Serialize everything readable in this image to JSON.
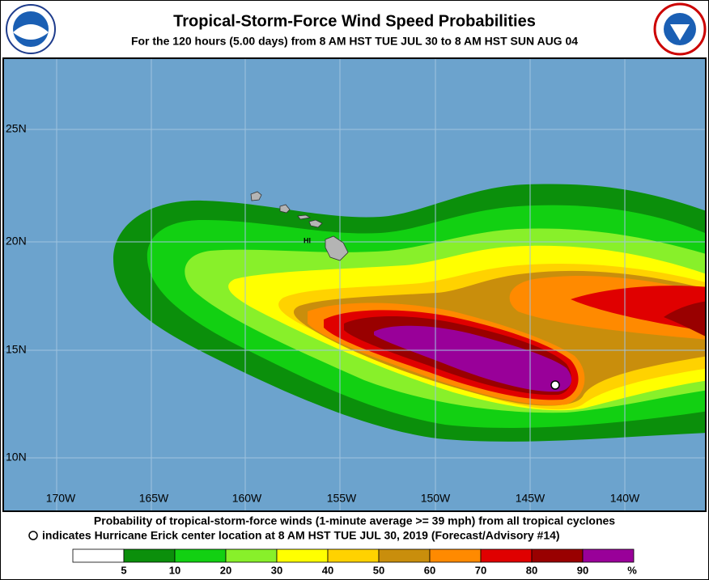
{
  "header": {
    "title": "Tropical-Storm-Force Wind Speed Probabilities",
    "subtitle": "For the 120 hours (5.00 days) from 8 AM HST TUE JUL 30 to 8 AM HST SUN AUG 04"
  },
  "map": {
    "latitude_labels": [
      "25N",
      "20N",
      "15N",
      "10N"
    ],
    "longitude_labels": [
      "170W",
      "165W",
      "160W",
      "155W",
      "150W",
      "145W",
      "140W"
    ],
    "region_label": "HI"
  },
  "footer": {
    "description": "Probability of tropical-storm-force winds (1-minute average >= 39 mph) from all tropical cyclones",
    "center_note": "indicates Hurricane Erick center location at 8 AM HST TUE JUL 30, 2019 (Forecast/Advisory #14)"
  },
  "legend": {
    "labels": [
      "5",
      "10",
      "20",
      "30",
      "40",
      "50",
      "60",
      "70",
      "80",
      "90"
    ],
    "unit": "%",
    "colors": [
      "#ffffff",
      "#0b8f0b",
      "#12d012",
      "#88f02a",
      "#ffff00",
      "#ffd200",
      "#c98e0c",
      "#ff8a00",
      "#e00000",
      "#990000",
      "#990099"
    ]
  }
}
